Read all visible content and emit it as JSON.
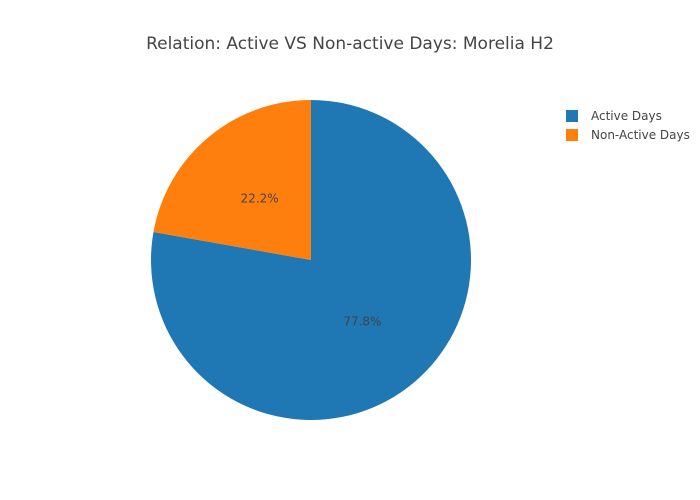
{
  "chart_data": {
    "type": "pie",
    "title": "Relation: Active VS Non-active Days: Morelia H2",
    "slices": [
      {
        "label": "Active Days",
        "value": 77.8,
        "text": "77.8%",
        "color": "#1f77b4"
      },
      {
        "label": "Non-Active Days",
        "value": 22.2,
        "text": "22.2%",
        "color": "#ff7f0e"
      }
    ],
    "legend": {
      "position": "top-right"
    }
  }
}
